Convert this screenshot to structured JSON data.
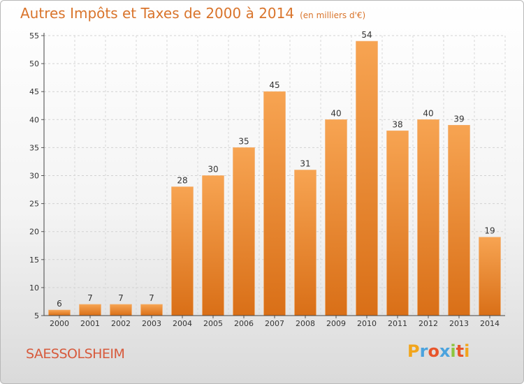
{
  "chart_data": {
    "type": "bar",
    "title": "Autres Impôts et Taxes de 2000 à 2014",
    "subtitle": "(en milliers d'€)",
    "categories": [
      "2000",
      "2001",
      "2002",
      "2003",
      "2004",
      "2005",
      "2006",
      "2007",
      "2008",
      "2009",
      "2010",
      "2011",
      "2012",
      "2013",
      "2014"
    ],
    "values": [
      6,
      7,
      7,
      7,
      28,
      30,
      35,
      45,
      31,
      40,
      54,
      38,
      40,
      39,
      19
    ],
    "ylim": [
      5,
      55
    ],
    "yticks": [
      5,
      10,
      15,
      20,
      25,
      30,
      35,
      40,
      45,
      50,
      55
    ],
    "grid": true,
    "bar_color": "#ef8a2e"
  },
  "footer": {
    "place": "SAESSOLSHEIM",
    "logo": {
      "letters": [
        "P",
        "r",
        "o",
        "x",
        "i",
        "t",
        "i"
      ],
      "colors": [
        "#f2a51c",
        "#4ba3de",
        "#e8552b",
        "#4ba3de",
        "#8dc63f",
        "#e8552b",
        "#f2a51c"
      ]
    }
  }
}
